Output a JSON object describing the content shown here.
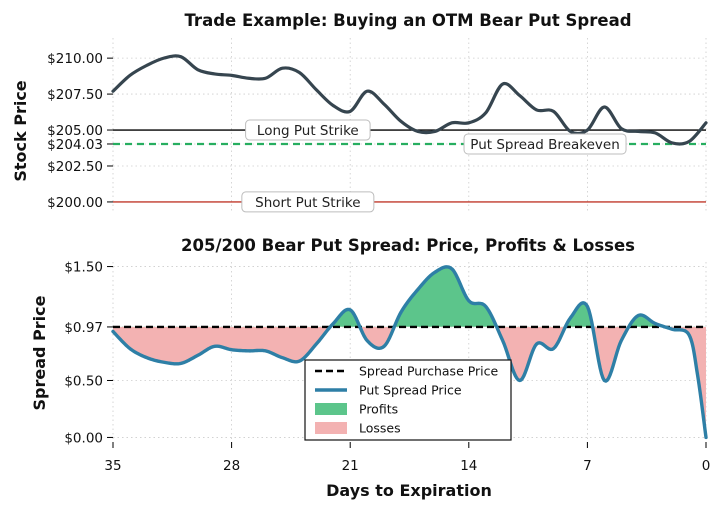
{
  "colors": {
    "stock_line": "#36454f",
    "long_strike": "#000000",
    "short_strike": "#c0392b",
    "breakeven": "#27ae60",
    "spread_line": "#2e7fa6",
    "purchase_line": "#000000",
    "profit_fill": "#5cc58b",
    "loss_fill": "#f3b2b2",
    "grid": "#cccccc"
  },
  "chart_data": [
    {
      "type": "line",
      "title": "Trade Example: Buying an OTM Bear Put Spread",
      "xlabel": "",
      "ylabel": "Stock Price",
      "xlim": [
        35,
        0
      ],
      "ylim": [
        199.3,
        211.4
      ],
      "ytick_values": [
        210.0,
        207.5,
        205.0,
        204.03,
        202.5,
        200.0
      ],
      "ytick_labels": [
        "$210.00",
        "$207.50",
        "$205.00",
        "$204.03",
        "$202.50",
        "$200.00"
      ],
      "grid": true,
      "series": [
        {
          "name": "",
          "x": [
            35,
            34,
            33,
            32,
            31,
            30,
            29,
            28,
            27,
            26,
            25,
            24,
            23,
            22,
            21,
            20,
            19,
            18,
            17,
            16,
            15,
            14,
            13,
            12,
            11,
            10,
            9,
            8,
            7,
            6,
            5,
            4,
            3,
            2,
            1,
            0
          ],
          "y": [
            207.7,
            208.8,
            209.5,
            210.0,
            210.1,
            209.2,
            208.9,
            208.8,
            208.6,
            208.6,
            209.3,
            209.0,
            207.8,
            206.7,
            206.3,
            207.7,
            206.8,
            205.6,
            204.9,
            204.9,
            205.5,
            205.5,
            206.2,
            208.2,
            207.4,
            206.4,
            206.3,
            204.9,
            205.0,
            206.6,
            205.1,
            204.9,
            204.8,
            204.1,
            204.2,
            205.5
          ]
        }
      ],
      "annotations": [
        {
          "text": "Long Put Strike",
          "x": 23.5,
          "y": 205.0
        },
        {
          "text": "Put Spread Breakeven",
          "x": 9.5,
          "y": 204.03
        },
        {
          "text": "Short Put Strike",
          "x": 23.5,
          "y": 200.0
        }
      ],
      "hlines": [
        {
          "y": 205.0,
          "style": "solid",
          "color_key": "long_strike"
        },
        {
          "y": 204.03,
          "style": "dashed",
          "color_key": "breakeven"
        },
        {
          "y": 200.0,
          "style": "solid",
          "color_key": "short_strike"
        }
      ]
    },
    {
      "type": "area",
      "title": "205/200 Bear Put Spread: Price, Profits & Losses",
      "xlabel": "Days to Expiration",
      "ylabel": "Spread Price",
      "xlim": [
        35,
        0
      ],
      "ylim": [
        -0.04,
        1.54
      ],
      "xticks": [
        35,
        28,
        21,
        14,
        7,
        0
      ],
      "xtick_labels": [
        "35",
        "28",
        "21",
        "14",
        "7",
        "0"
      ],
      "ytick_values": [
        1.5,
        0.97,
        0.5,
        0.0
      ],
      "ytick_labels": [
        "$1.50",
        "$0.97",
        "$0.50",
        "$0.00"
      ],
      "grid": true,
      "purchase_price": 0.97,
      "series": [
        {
          "name": "Put Spread Price",
          "x": [
            35,
            34,
            33,
            32,
            31,
            30,
            29,
            28,
            27,
            26,
            25,
            24,
            23,
            22,
            21,
            20,
            19,
            18,
            17,
            16,
            15,
            14,
            13,
            12,
            11,
            10,
            9,
            8,
            7,
            6,
            5,
            4,
            3,
            2,
            1,
            0.5,
            0
          ],
          "y": [
            0.93,
            0.78,
            0.7,
            0.66,
            0.65,
            0.72,
            0.8,
            0.77,
            0.76,
            0.76,
            0.7,
            0.67,
            0.82,
            1.0,
            1.12,
            0.85,
            0.8,
            1.1,
            1.3,
            1.45,
            1.48,
            1.2,
            1.15,
            0.85,
            0.5,
            0.82,
            0.78,
            1.05,
            1.15,
            0.5,
            0.85,
            1.07,
            1.0,
            0.95,
            0.9,
            0.55,
            0.0
          ]
        }
      ],
      "legend": {
        "placement": "lower-center",
        "entries": [
          "Spread Purchase Price",
          "Put Spread Price",
          "Profits",
          "Losses"
        ]
      }
    }
  ]
}
